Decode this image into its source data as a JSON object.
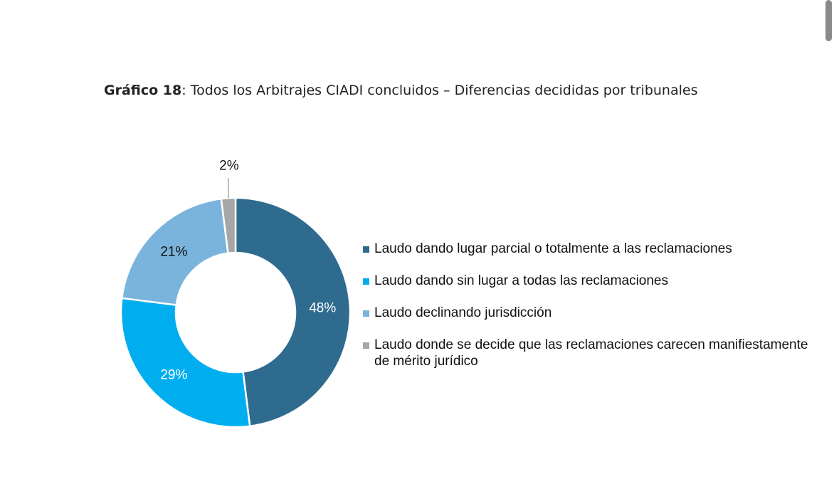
{
  "title": {
    "bold_part": "Gráfico 18",
    "rest": ": Todos los Arbitrajes CIADI concluidos – Diferencias decididas por tribunales"
  },
  "chart_data": {
    "type": "pie",
    "donut": true,
    "title": "Gráfico 18: Todos los Arbitrajes CIADI concluidos – Diferencias decididas por tribunales",
    "legend_position": "right",
    "series": [
      {
        "name": "Laudo dando lugar parcial o totalmente a las reclamaciones",
        "value": 48,
        "label": "48%",
        "color": "#2f6b8f"
      },
      {
        "name": "Laudo dando sin lugar a todas las reclamaciones",
        "value": 29,
        "label": "29%",
        "color": "#00aeef"
      },
      {
        "name": "Laudo declinando jurisdicción",
        "value": 21,
        "label": "21%",
        "color": "#7ab4dd"
      },
      {
        "name": "Laudo donde se decide que las reclamaciones carecen manifiestamente de mérito jurídico",
        "value": 2,
        "label": "2%",
        "color": "#a6a6a6"
      }
    ]
  }
}
